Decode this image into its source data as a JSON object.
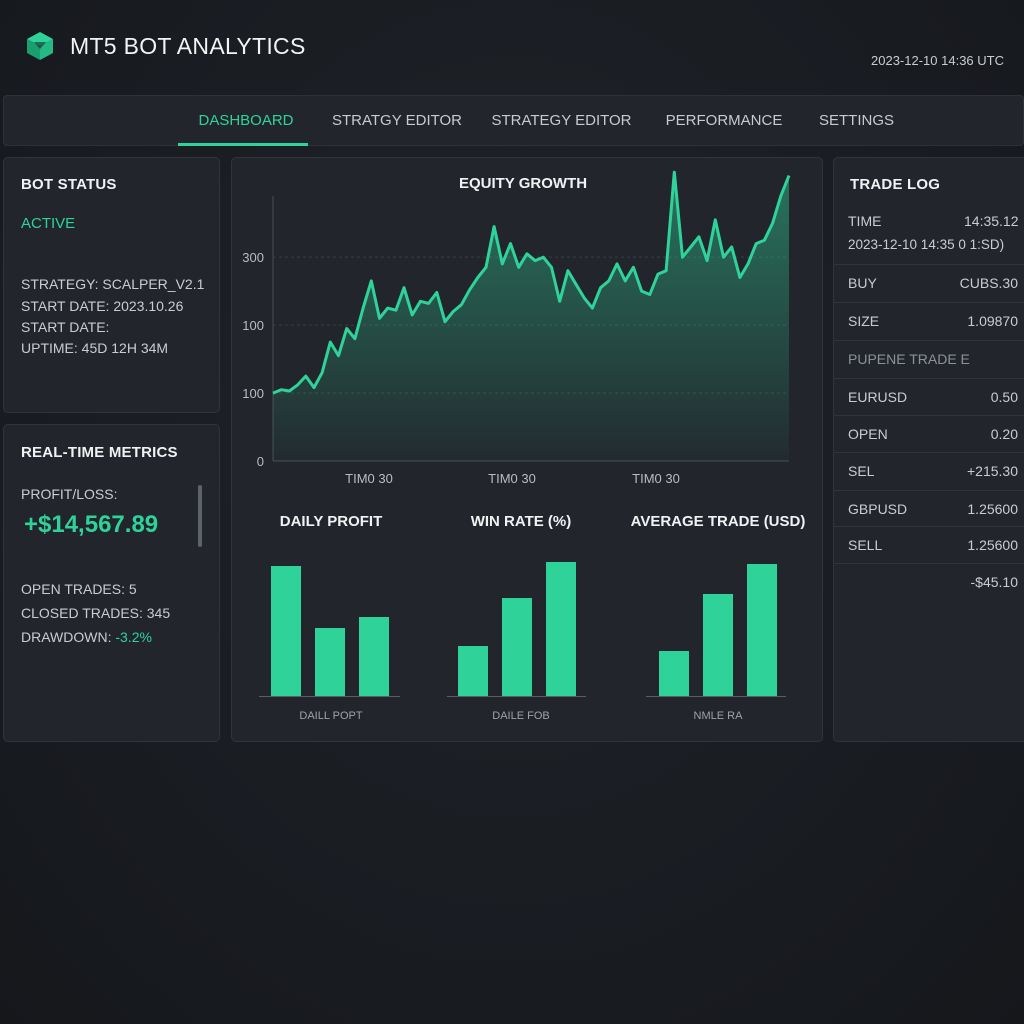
{
  "header": {
    "title": "MT5 BOT ANALYTICS",
    "timestamp": "2023-12-10 14:36 UTC",
    "logo_icon": "cube-logo-icon"
  },
  "colors": {
    "accent": "#2fd39a",
    "negative": "#f0614f",
    "background": "#1a1d22",
    "panel": "#22262c"
  },
  "nav": {
    "tabs": [
      {
        "label": "DASHBOARD",
        "active": true
      },
      {
        "label": "STRATGY EDITOR",
        "active": false
      },
      {
        "label": "STRATEGY EDITOR",
        "active": false
      },
      {
        "label": "PERFORMANCE",
        "active": false
      },
      {
        "label": "SETTINGS",
        "active": false
      }
    ]
  },
  "bot_status": {
    "title": "BOT STATUS",
    "state": "ACTIVE",
    "strategy": "STRATEGY: SCALPER_V2.1",
    "start_date": "START DATE: 2023.10.26",
    "start_date_2": "START DATE:",
    "uptime": "UPTIME: 45D 12H 34M"
  },
  "metrics": {
    "title": "REAL-TIME METRICS",
    "pnl_label": "PROFIT/LOSS:",
    "pnl_value": "+$14,567.89",
    "open_trades": "OPEN TRADES: 5",
    "closed_trades": "CLOSED TRADES: 345",
    "drawdown_label": "DRAWDOWN:",
    "drawdown_value": "-3.2%"
  },
  "trade_log": {
    "title": "TRADE LOG",
    "time_label": "TIME",
    "time_value": "14:35.12",
    "time_line2": "2023-12-10 14:35 0 1:SD)",
    "section_label": "PUPENE TRADE E",
    "rows": [
      {
        "left": "BUY",
        "right": "CUBS.30",
        "tone": "green"
      },
      {
        "left": "SIZE",
        "right": "1.09870",
        "tone": "green"
      },
      {
        "left": "EURUSD",
        "right": "0.50",
        "tone": "green"
      },
      {
        "left": "OPEN",
        "right": "0.20",
        "tone": "green"
      },
      {
        "left": "SEL",
        "right": "+215.30",
        "tone": "green"
      },
      {
        "left": "GBPUSD",
        "right": "1.25600",
        "tone": "plain"
      },
      {
        "left": "SELL",
        "right": "1.25600",
        "tone": "plain"
      },
      {
        "left": "",
        "right": "-$45.10",
        "tone": "red"
      }
    ]
  },
  "chart_data": [
    {
      "type": "area",
      "title": "EQUITY GROWTH",
      "ytick_labels": [
        "0",
        "100",
        "100",
        "300"
      ],
      "xtick_labels": [
        "TIM0 30",
        "TIM0 30",
        "TIM0 30"
      ],
      "ylim": [
        0,
        390
      ],
      "grid": true,
      "values": [
        100,
        105,
        103,
        112,
        125,
        108,
        130,
        175,
        155,
        195,
        180,
        225,
        265,
        210,
        225,
        222,
        255,
        215,
        235,
        232,
        248,
        205,
        220,
        230,
        252,
        270,
        285,
        345,
        290,
        320,
        285,
        305,
        295,
        300,
        285,
        235,
        280,
        260,
        240,
        225,
        255,
        265,
        290,
        265,
        285,
        250,
        245,
        275,
        280,
        425,
        300,
        315,
        330,
        295,
        355,
        300,
        315,
        270,
        290,
        320,
        325,
        350,
        390,
        420
      ]
    },
    {
      "type": "bar",
      "title": "DAILY PROFIT",
      "xlabel": "DAILL POPT",
      "values": [
        130,
        68,
        79
      ],
      "ylim": [
        0,
        140
      ]
    },
    {
      "type": "bar",
      "title": "WIN RATE (%)",
      "xlabel": "DAILE FOB",
      "values": [
        50,
        98,
        134
      ],
      "ylim": [
        0,
        140
      ]
    },
    {
      "type": "bar",
      "title": "AVERAGE TRADE (USD)",
      "xlabel": "NMLE RA",
      "values": [
        45,
        102,
        132
      ],
      "ylim": [
        0,
        140
      ]
    }
  ]
}
